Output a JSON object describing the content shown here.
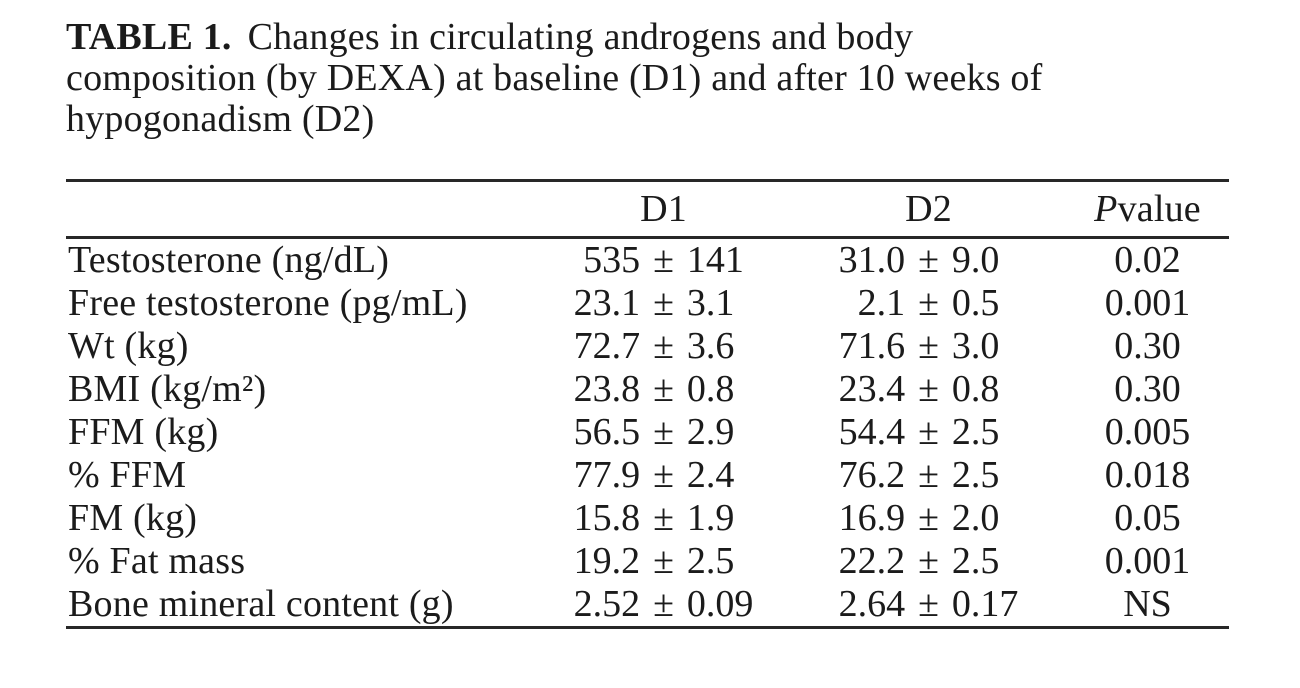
{
  "caption": {
    "label": "TABLE 1.",
    "line1": "Changes in circulating androgens and body",
    "line2": "composition (by DEXA) at baseline (D1) and after 10 weeks of",
    "line3": "hypogonadism (D2)"
  },
  "table": {
    "plus_minus": "±",
    "header": {
      "d1": "D1",
      "d2": "D2",
      "p_italic": "P",
      "p_rest": " value"
    },
    "rows": [
      {
        "label": "Testosterone (ng/dL)",
        "d1_mean": "535",
        "d1_sd": "141",
        "d2_mean": "31.0",
        "d2_sd": "9.0",
        "p": "0.02"
      },
      {
        "label": "Free testosterone (pg/mL)",
        "d1_mean": "23.1",
        "d1_sd": "3.1",
        "d2_mean": "2.1",
        "d2_sd": "0.5",
        "p": "0.001"
      },
      {
        "label": "Wt (kg)",
        "d1_mean": "72.7",
        "d1_sd": "3.6",
        "d2_mean": "71.6",
        "d2_sd": "3.0",
        "p": "0.30"
      },
      {
        "label": "BMI (kg/m²)",
        "d1_mean": "23.8",
        "d1_sd": "0.8",
        "d2_mean": "23.4",
        "d2_sd": "0.8",
        "p": "0.30"
      },
      {
        "label": "FFM (kg)",
        "d1_mean": "56.5",
        "d1_sd": "2.9",
        "d2_mean": "54.4",
        "d2_sd": "2.5",
        "p": "0.005"
      },
      {
        "label": "% FFM",
        "d1_mean": "77.9",
        "d1_sd": "2.4",
        "d2_mean": "76.2",
        "d2_sd": "2.5",
        "p": "0.018"
      },
      {
        "label": "FM (kg)",
        "d1_mean": "15.8",
        "d1_sd": "1.9",
        "d2_mean": "16.9",
        "d2_sd": "2.0",
        "p": "0.05"
      },
      {
        "label": "% Fat mass",
        "d1_mean": "19.2",
        "d1_sd": "2.5",
        "d2_mean": "22.2",
        "d2_sd": "2.5",
        "p": "0.001"
      },
      {
        "label": "Bone mineral content (g)",
        "d1_mean": "2.52",
        "d1_sd": "0.09",
        "d2_mean": "2.64",
        "d2_sd": "0.17",
        "p": "NS"
      }
    ]
  }
}
